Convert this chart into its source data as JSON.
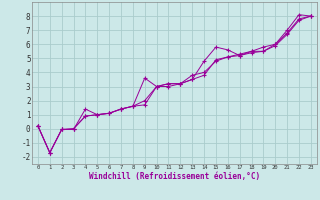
{
  "background_color": "#cce8e8",
  "grid_color": "#aacccc",
  "line_color": "#990099",
  "marker": "+",
  "xlabel": "Windchill (Refroidissement éolien,°C)",
  "xlim": [
    -0.5,
    23.5
  ],
  "ylim": [
    -2.5,
    9.0
  ],
  "yticks": [
    -2,
    -1,
    0,
    1,
    2,
    3,
    4,
    5,
    6,
    7,
    8
  ],
  "xticks": [
    0,
    1,
    2,
    3,
    4,
    5,
    6,
    7,
    8,
    9,
    10,
    11,
    12,
    13,
    14,
    15,
    16,
    17,
    18,
    19,
    20,
    21,
    22,
    23
  ],
  "series": [
    {
      "x": [
        0,
        1,
        2,
        3,
        4,
        5,
        6,
        7,
        8,
        9,
        10,
        11,
        12,
        13,
        14,
        15,
        16,
        17,
        18,
        19,
        20,
        21,
        22,
        23
      ],
      "y": [
        0.2,
        -1.7,
        -0.05,
        -0.05,
        1.4,
        1.0,
        1.1,
        1.4,
        1.6,
        3.6,
        3.0,
        3.2,
        3.2,
        3.5,
        4.8,
        5.8,
        5.6,
        5.2,
        5.5,
        5.5,
        6.0,
        7.0,
        8.1,
        8.0
      ]
    },
    {
      "x": [
        0,
        1,
        2,
        3,
        4,
        5,
        6,
        7,
        8,
        9,
        10,
        11,
        12,
        13,
        14,
        15,
        16,
        17,
        18,
        19,
        20,
        21,
        22,
        23
      ],
      "y": [
        0.2,
        -1.7,
        -0.05,
        0.0,
        0.9,
        1.0,
        1.1,
        1.4,
        1.6,
        2.0,
        3.0,
        3.2,
        3.2,
        3.8,
        4.0,
        4.8,
        5.1,
        5.3,
        5.5,
        5.8,
        6.0,
        6.8,
        7.8,
        8.0
      ]
    },
    {
      "x": [
        0,
        1,
        2,
        3,
        4,
        5,
        6,
        7,
        8,
        9,
        10,
        11,
        12,
        13,
        14,
        15,
        16,
        17,
        18,
        19,
        20,
        21,
        22,
        23
      ],
      "y": [
        0.2,
        -1.7,
        -0.05,
        0.0,
        0.9,
        1.0,
        1.1,
        1.4,
        1.6,
        1.7,
        3.0,
        3.0,
        3.2,
        3.5,
        3.8,
        4.9,
        5.1,
        5.2,
        5.4,
        5.5,
        5.9,
        6.7,
        7.7,
        8.0
      ]
    }
  ]
}
